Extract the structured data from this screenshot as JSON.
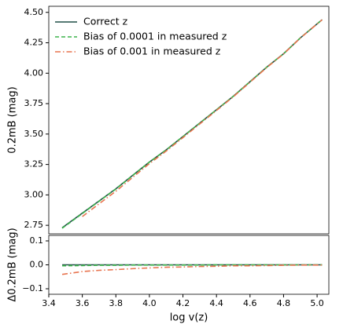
{
  "chart_data": [
    {
      "type": "line",
      "ylabel": "0.2mB (mag)",
      "xlim": [
        3.4,
        5.07
      ],
      "ylim": [
        2.68,
        4.55
      ],
      "yticks": [
        2.75,
        {
          "value": 3,
          "label": "3.00"
        },
        3.25,
        {
          "value": 3.5,
          "label": "3.50"
        },
        3.75,
        {
          "value": 4,
          "label": "4.00"
        },
        4.25,
        {
          "value": 4.5,
          "label": "4.50"
        }
      ],
      "legend": "upper left",
      "x": [
        3.48,
        3.6,
        3.7,
        3.8,
        3.9,
        4.0,
        4.1,
        4.2,
        4.3,
        4.4,
        4.5,
        4.6,
        4.7,
        4.8,
        4.9,
        5.03
      ],
      "series": [
        {
          "name": "Correct z",
          "color": "#1f4e46",
          "dash": "solid",
          "values": [
            2.73,
            2.85,
            2.95,
            3.05,
            3.16,
            3.27,
            3.37,
            3.48,
            3.59,
            3.7,
            3.81,
            3.93,
            4.05,
            4.16,
            4.29,
            4.44
          ]
        },
        {
          "name": "Bias of 0.0001 in measured z",
          "color": "#3cb44b",
          "dash": "dashed",
          "values": [
            2.726,
            2.847,
            2.948,
            3.048,
            3.159,
            3.269,
            3.369,
            3.479,
            3.589,
            3.7,
            3.81,
            3.93,
            4.05,
            4.16,
            4.29,
            4.44
          ]
        },
        {
          "name": "Bias of 0.001 in measured z",
          "color": "#e8744f",
          "dash": "dashdot",
          "values": [
            null,
            2.822,
            2.927,
            3.03,
            3.144,
            3.257,
            3.36,
            3.471,
            3.583,
            3.694,
            3.806,
            3.926,
            4.047,
            4.158,
            4.289,
            4.439
          ]
        }
      ]
    },
    {
      "type": "line",
      "xlabel": "log v(z)",
      "ylabel": "Δ0.2mB (mag)",
      "xlim": [
        3.4,
        5.07
      ],
      "ylim": [
        -0.123,
        0.123
      ],
      "xticks": [
        3.4,
        3.6,
        3.8,
        {
          "value": 4,
          "label": "4.0"
        },
        4.2,
        4.4,
        4.6,
        4.8,
        {
          "value": 5,
          "label": "5.0"
        }
      ],
      "yticks": [
        {
          "value": -0.1,
          "label": "−0.1"
        },
        {
          "value": 0,
          "label": "0.0"
        },
        0.1
      ],
      "x": [
        3.48,
        3.6,
        3.7,
        3.8,
        3.9,
        4.0,
        4.1,
        4.2,
        4.3,
        4.4,
        4.5,
        4.6,
        4.7,
        4.8,
        4.9,
        5.03
      ],
      "series": [
        {
          "name": "Correct z",
          "color": "#1f4e46",
          "dash": "solid",
          "values": [
            0,
            0,
            0,
            0,
            0,
            0,
            0,
            0,
            0,
            0,
            0,
            0,
            0,
            0,
            0,
            0
          ]
        },
        {
          "name": "Bias of 0.0001 in measured z",
          "color": "#3cb44b",
          "dash": "dashed",
          "values": [
            -0.004,
            -0.003,
            -0.002,
            -0.002,
            -0.001,
            -0.001,
            -0.001,
            -0.001,
            -0.001,
            0,
            0,
            0,
            0,
            0,
            0,
            0
          ]
        },
        {
          "name": "Bias of 0.001 in measured z",
          "color": "#e8744f",
          "dash": "dashdot",
          "values": [
            -0.04,
            -0.028,
            -0.023,
            -0.02,
            -0.016,
            -0.013,
            -0.01,
            -0.009,
            -0.007,
            -0.006,
            -0.004,
            -0.004,
            -0.003,
            -0.002,
            -0.001,
            -0.001
          ]
        }
      ]
    }
  ]
}
